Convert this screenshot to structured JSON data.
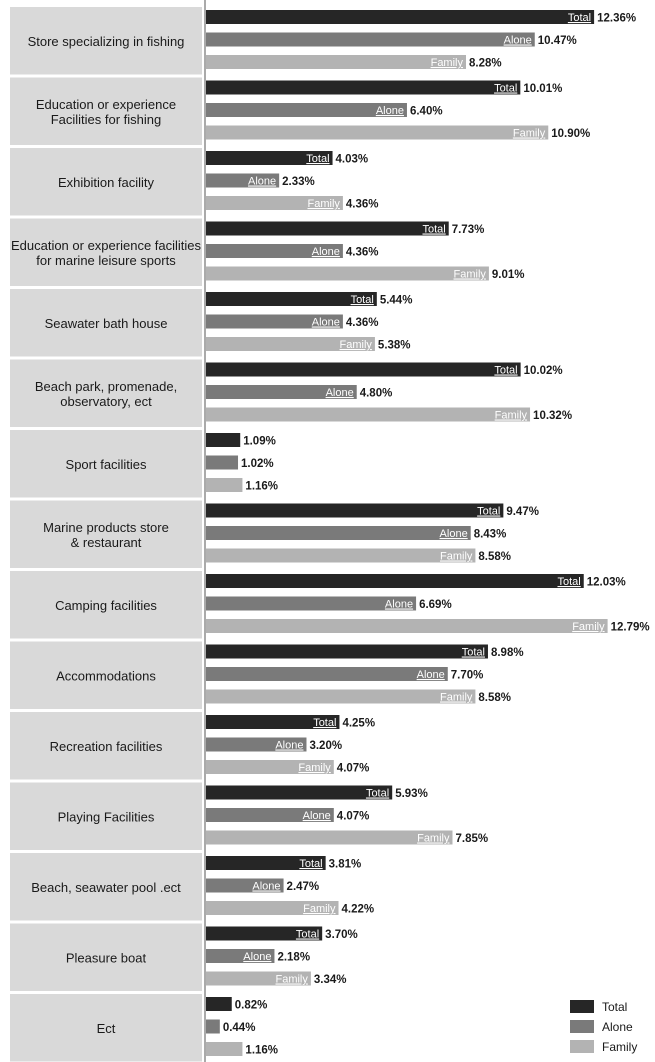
{
  "chart_data": {
    "type": "bar",
    "orientation": "horizontal",
    "categories": [
      [
        "Store specializing in fishing"
      ],
      [
        "Education or experience",
        "Facilities for fishing"
      ],
      [
        "Exhibition facility"
      ],
      [
        "Education or experience facilities",
        "for marine leisure sports"
      ],
      [
        "Seawater bath house"
      ],
      [
        "Beach park, promenade,",
        "observatory, ect"
      ],
      [
        "Sport facilities"
      ],
      [
        "Marine products store",
        "& restaurant"
      ],
      [
        "Camping facilities"
      ],
      [
        "Accommodations"
      ],
      [
        "Recreation facilities"
      ],
      [
        "Playing Facilities"
      ],
      [
        "Beach, seawater pool .ect"
      ],
      [
        "Pleasure boat"
      ],
      [
        "Ect"
      ]
    ],
    "series": [
      {
        "name": "Total",
        "color": "#262626",
        "values": [
          12.36,
          10.01,
          4.03,
          7.73,
          5.44,
          10.02,
          1.09,
          9.47,
          12.03,
          8.98,
          4.25,
          5.93,
          3.81,
          3.7,
          0.82
        ],
        "labels": [
          "12.36%",
          "10.01%",
          "4.03%",
          "7.73%",
          "5.44%",
          "10.02%",
          "1.09%",
          "9.47%",
          "12.03%",
          "8.98%",
          "4.25%",
          "5.93%",
          "3.81%",
          "3.70%",
          "0.82%"
        ]
      },
      {
        "name": "Alone",
        "color": "#7a7a7a",
        "values": [
          10.47,
          6.4,
          2.33,
          4.36,
          4.36,
          4.8,
          1.02,
          8.43,
          6.69,
          7.7,
          3.2,
          4.07,
          2.47,
          2.18,
          0.44
        ],
        "labels": [
          "10.47%",
          "6.40%",
          "2.33%",
          "4.36%",
          "4.36%",
          "4.80%",
          "1.02%",
          "8.43%",
          "6.69%",
          "7.70%",
          "3.20%",
          "4.07%",
          "2.47%",
          "2.18%",
          "0.44%"
        ]
      },
      {
        "name": "Family",
        "color": "#b3b3b3",
        "values": [
          8.28,
          10.9,
          4.36,
          9.01,
          5.38,
          10.32,
          1.16,
          8.58,
          12.79,
          8.58,
          4.07,
          7.85,
          4.22,
          3.34,
          1.16
        ],
        "labels": [
          "8.28%",
          "10.90%",
          "4.36%",
          "9.01%",
          "5.38%",
          "10.32%",
          "1.16%",
          "8.58%",
          "12.79%",
          "8.58%",
          "4.07%",
          "7.85%",
          "4.22%",
          "3.34%",
          "1.16%"
        ]
      }
    ],
    "in_bar_label_threshold": 1.5,
    "legend": {
      "position": "bottom-right",
      "items": [
        "Total",
        "Alone",
        "Family"
      ]
    },
    "grid": false
  }
}
